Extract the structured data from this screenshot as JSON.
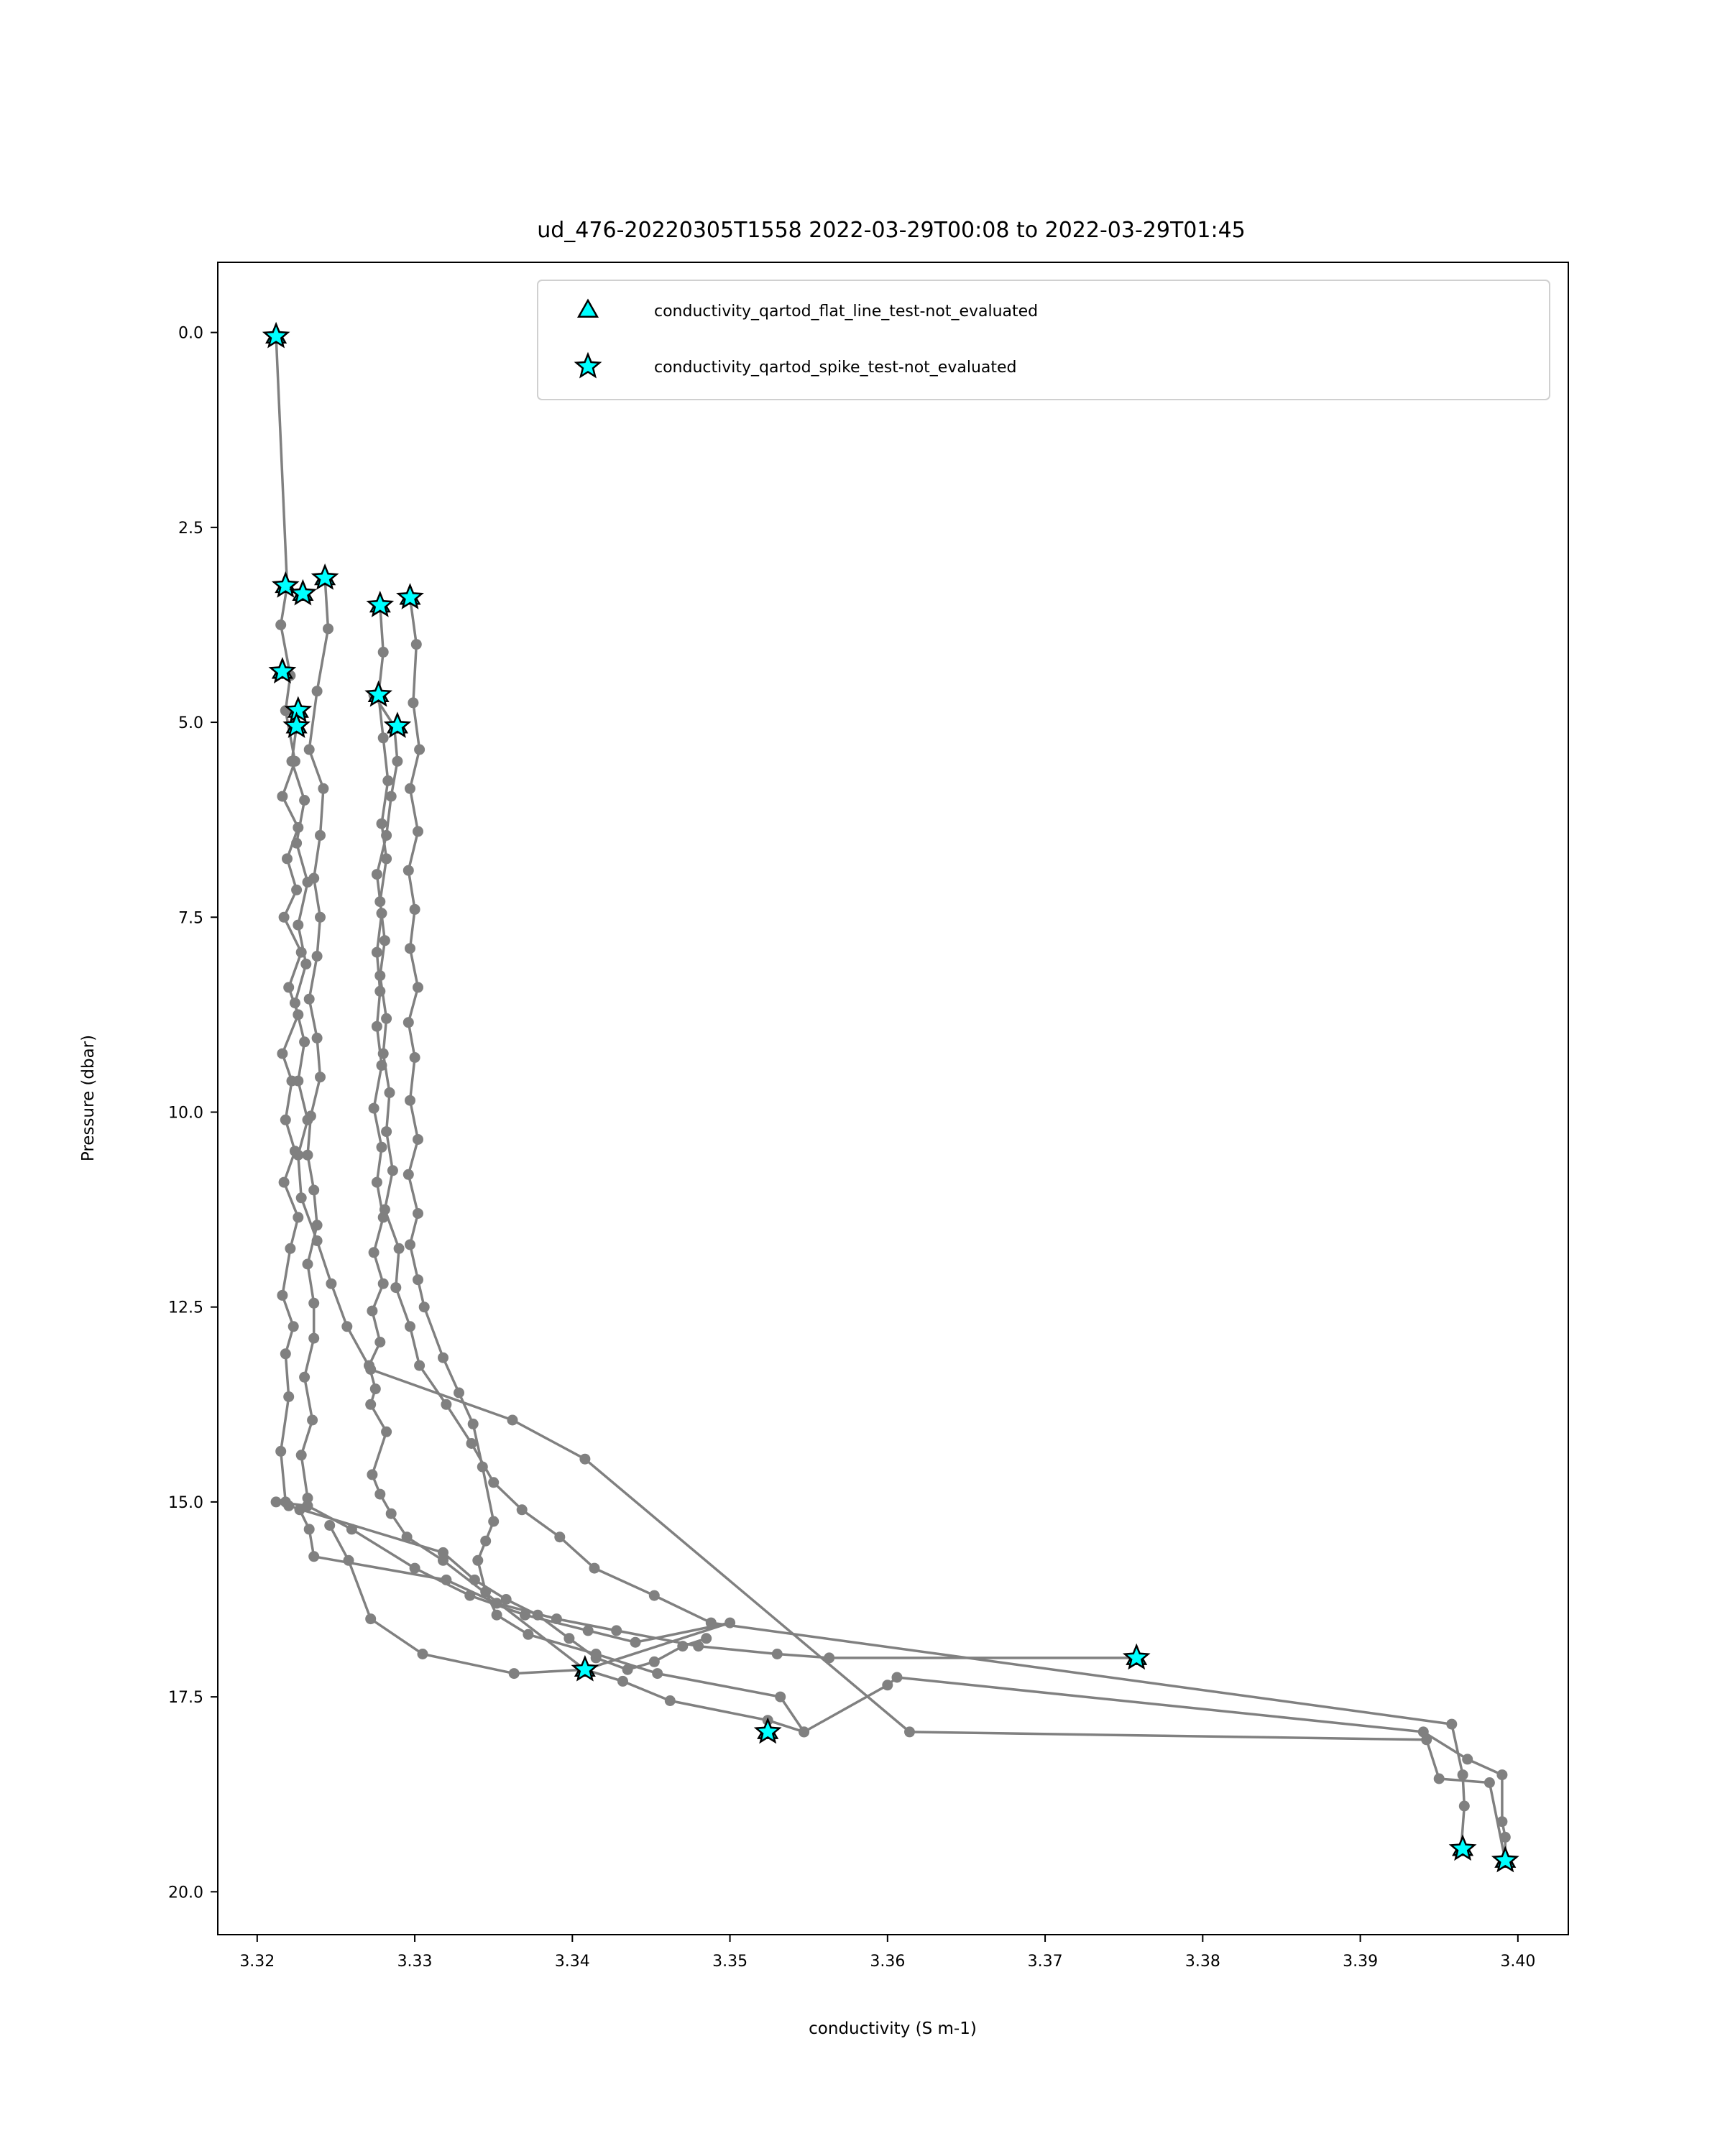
{
  "chart_data": {
    "type": "line",
    "title": "ud_476-20220305T1558 2022-03-29T00:08 to 2022-03-29T01:45",
    "xlabel": "conductivity (S m-1)",
    "ylabel": "Pressure (dbar)",
    "xlim": [
      3.3175,
      3.4032
    ],
    "ylim": [
      20.55,
      -0.9
    ],
    "y_inverted": true,
    "x_ticks": [
      "3.32",
      "3.33",
      "3.34",
      "3.35",
      "3.36",
      "3.37",
      "3.38",
      "3.39",
      "3.40"
    ],
    "x_tick_values": [
      3.32,
      3.33,
      3.34,
      3.35,
      3.36,
      3.37,
      3.38,
      3.39,
      3.4
    ],
    "y_ticks": [
      "0.0",
      "2.5",
      "5.0",
      "7.5",
      "10.0",
      "12.5",
      "15.0",
      "17.5",
      "20.0"
    ],
    "y_tick_values": [
      0.0,
      2.5,
      5.0,
      7.5,
      10.0,
      12.5,
      15.0,
      17.5,
      20.0
    ],
    "grid": false,
    "legend_position": "top-right",
    "colors": {
      "line": "#808080",
      "marker_fill": "#00ffff",
      "marker_edge": "#000000"
    },
    "series": [
      {
        "x": [
          3.3212,
          3.3219,
          3.3215,
          3.3221,
          3.3218,
          3.3224,
          3.3216,
          3.3226,
          3.3219,
          3.3225,
          3.3217,
          3.3228,
          3.322,
          3.3226,
          3.3216,
          3.3222,
          3.3218,
          3.3224,
          3.3217,
          3.3226,
          3.3221,
          3.3216,
          3.3223,
          3.3218,
          3.322,
          3.3215,
          3.3218,
          3.322,
          3.3318,
          3.3338,
          3.3358,
          3.3378,
          3.3398,
          3.3415,
          3.3435,
          3.3452,
          3.347,
          3.3485
        ],
        "y": [
          0.05,
          3.25,
          3.75,
          4.4,
          4.85,
          5.5,
          5.95,
          6.35,
          6.75,
          7.15,
          7.5,
          7.95,
          8.4,
          8.75,
          9.25,
          9.6,
          10.1,
          10.5,
          10.9,
          11.35,
          11.75,
          12.35,
          12.75,
          13.1,
          13.65,
          14.35,
          15.0,
          15.05,
          15.65,
          16.0,
          16.25,
          16.45,
          16.75,
          17.0,
          17.15,
          17.05,
          16.85,
          16.75
        ]
      },
      {
        "x": [
          3.3243,
          3.3245,
          3.3238,
          3.3233,
          3.3242,
          3.324,
          3.3236,
          3.324,
          3.3238,
          3.3233,
          3.3238,
          3.324,
          3.3234,
          3.3232,
          3.3236,
          3.3238,
          3.3232,
          3.3236,
          3.3236,
          3.323,
          3.3235,
          3.3228,
          3.3232,
          3.3227,
          3.3233,
          3.3236,
          3.332,
          3.3352,
          3.339,
          3.3428,
          3.348,
          3.353,
          3.3563,
          3.3758
        ],
        "y": [
          3.15,
          3.8,
          4.6,
          5.35,
          5.85,
          6.45,
          7.0,
          7.5,
          8.0,
          8.55,
          9.05,
          9.55,
          10.05,
          10.55,
          11.0,
          11.45,
          11.95,
          12.45,
          12.9,
          13.4,
          13.95,
          14.4,
          14.95,
          15.1,
          15.35,
          15.7,
          16.0,
          16.3,
          16.5,
          16.65,
          16.85,
          16.95,
          17.0,
          17.0
        ]
      },
      {
        "x": [
          3.3278,
          3.328,
          3.3277,
          3.328,
          3.3283,
          3.3279,
          3.3282,
          3.3278,
          3.3281,
          3.3278,
          3.3282,
          3.328,
          3.3284,
          3.3282,
          3.3286,
          3.3281,
          3.329,
          3.3288,
          3.3297,
          3.3303,
          3.332,
          3.3336,
          3.335,
          3.3368,
          3.3392,
          3.3414,
          3.3452,
          3.3488,
          3.3958,
          3.3965,
          3.3966,
          3.3964
        ],
        "y": [
          3.5,
          4.1,
          4.65,
          5.2,
          5.75,
          6.3,
          6.75,
          7.3,
          7.8,
          8.25,
          8.8,
          9.25,
          9.75,
          10.25,
          10.75,
          11.25,
          11.75,
          12.25,
          12.75,
          13.25,
          13.75,
          14.25,
          14.75,
          15.1,
          15.45,
          15.85,
          16.2,
          16.55,
          17.85,
          18.5,
          18.9,
          19.45
        ]
      },
      {
        "x": [
          3.3297,
          3.3301,
          3.3299,
          3.3303,
          3.3297,
          3.3302,
          3.3296,
          3.33,
          3.3297,
          3.3302,
          3.3296,
          3.33,
          3.3297,
          3.3302,
          3.3296,
          3.3302,
          3.3297,
          3.3302,
          3.3306,
          3.3318,
          3.3328,
          3.3337,
          3.3343,
          3.335,
          3.3345,
          3.334,
          3.3345,
          3.3352,
          3.3372,
          3.3415,
          3.3454,
          3.3532,
          3.3547,
          3.36,
          3.3606,
          3.394,
          3.3968,
          3.399,
          3.399,
          3.3992,
          3.3992
        ],
        "y": [
          3.4,
          4.0,
          4.75,
          5.35,
          5.85,
          6.4,
          6.9,
          7.4,
          7.9,
          8.4,
          8.85,
          9.3,
          9.85,
          10.35,
          10.8,
          11.3,
          11.7,
          12.15,
          12.5,
          13.15,
          13.6,
          14.0,
          14.55,
          15.25,
          15.5,
          15.75,
          16.15,
          16.45,
          16.7,
          16.95,
          17.2,
          17.5,
          17.95,
          17.35,
          17.25,
          17.95,
          18.3,
          18.5,
          19.1,
          19.3,
          19.6
        ]
      },
      {
        "x": [
          3.3274,
          3.3287,
          3.3289,
          3.3285,
          3.3282,
          3.3276,
          3.3279,
          3.3276,
          3.3278,
          3.3276,
          3.3279,
          3.3274,
          3.3279,
          3.3276,
          3.328,
          3.3274,
          3.328,
          3.3273,
          3.3278,
          3.3271,
          3.3275,
          3.3272,
          3.3282,
          3.3273,
          3.3278,
          3.3285,
          3.3295,
          3.3318,
          3.3408,
          3.3432,
          3.3462,
          3.3524,
          3.3547
        ],
        "y": [
          4.65,
          5.05,
          5.5,
          5.95,
          6.45,
          6.95,
          7.45,
          7.95,
          8.45,
          8.9,
          9.4,
          9.95,
          10.45,
          10.9,
          11.35,
          11.8,
          12.2,
          12.55,
          12.95,
          13.25,
          13.55,
          13.75,
          14.1,
          14.65,
          14.9,
          15.15,
          15.45,
          15.75,
          17.15,
          17.3,
          17.55,
          17.8,
          17.95
        ]
      },
      {
        "x": [
          3.3225,
          3.3222,
          3.323,
          3.3225,
          3.3232,
          3.3226,
          3.3231,
          3.3224,
          3.323,
          3.3226,
          3.3232,
          3.3226,
          3.3228,
          3.3238,
          3.3247,
          3.3257,
          3.3272,
          3.3362,
          3.3408,
          3.3614,
          3.3942,
          3.395,
          3.3982,
          3.3992
        ],
        "y": [
          5.05,
          5.5,
          6.0,
          6.55,
          7.05,
          7.6,
          8.1,
          8.6,
          9.1,
          9.6,
          10.1,
          10.55,
          11.1,
          11.65,
          12.2,
          12.75,
          13.3,
          13.95,
          14.45,
          17.95,
          18.05,
          18.55,
          18.6,
          19.6
        ]
      },
      {
        "x": [
          3.3212,
          3.3232,
          3.326,
          3.33,
          3.3335,
          3.337,
          3.341,
          3.344,
          3.35,
          3.3408,
          3.3363,
          3.3305,
          3.3272,
          3.3258,
          3.3246
        ],
        "y": [
          15.0,
          15.05,
          15.35,
          15.85,
          16.2,
          16.45,
          16.65,
          16.8,
          16.55,
          17.15,
          17.2,
          16.95,
          16.5,
          15.75,
          15.3
        ]
      }
    ],
    "marker_points": {
      "flat_line_x": [
        3.3212,
        3.3218,
        3.3243,
        3.3229,
        3.3278,
        3.3297,
        3.3216,
        3.3277,
        3.3226,
        3.3225,
        3.3289,
        3.3758,
        3.3408,
        3.3524,
        3.3965,
        3.3992
      ],
      "flat_line_y": [
        0.05,
        3.25,
        3.15,
        3.35,
        3.5,
        3.4,
        4.35,
        4.65,
        4.85,
        5.05,
        5.05,
        17.0,
        17.15,
        17.95,
        19.45,
        19.6
      ],
      "spike_x": [
        3.3212,
        3.3218,
        3.3243,
        3.3229,
        3.3278,
        3.3297,
        3.3216,
        3.3277,
        3.3226,
        3.3225,
        3.3289,
        3.3758,
        3.3408,
        3.3524,
        3.3965,
        3.3992
      ],
      "spike_y": [
        0.05,
        3.25,
        3.15,
        3.35,
        3.5,
        3.4,
        4.35,
        4.65,
        4.85,
        5.05,
        5.05,
        17.0,
        17.15,
        17.95,
        19.45,
        19.6
      ]
    },
    "legend": [
      {
        "label": "conductivity_qartod_flat_line_test-not_evaluated",
        "marker": "triangle"
      },
      {
        "label": "conductivity_qartod_spike_test-not_evaluated",
        "marker": "star"
      }
    ]
  }
}
